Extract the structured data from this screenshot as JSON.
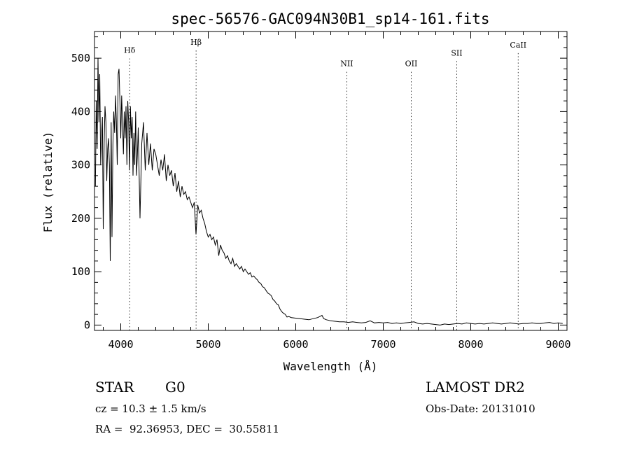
{
  "chart_data": {
    "type": "line",
    "title": "spec-56576-GAC094N30B1_sp14-161.fits",
    "xlabel": "Wavelength (Å)",
    "ylabel": "Flux (relative)",
    "xlim": [
      3700,
      9100
    ],
    "ylim": [
      -10,
      550
    ],
    "x_ticks": [
      4000,
      5000,
      6000,
      7000,
      8000,
      9000
    ],
    "y_ticks": [
      0,
      100,
      200,
      300,
      400,
      500
    ],
    "grid": false,
    "line_color": "#000000",
    "lines": [
      {
        "label": "Hδ",
        "x": 4102,
        "label_y": 510
      },
      {
        "label": "Hβ",
        "x": 4861,
        "label_y": 525
      },
      {
        "label": "NII",
        "x": 6583,
        "label_y": 485
      },
      {
        "label": "OII",
        "x": 7320,
        "label_y": 485
      },
      {
        "label": "SII",
        "x": 7840,
        "label_y": 505
      },
      {
        "label": "CaII",
        "x": 8542,
        "label_y": 520
      }
    ],
    "series": [
      {
        "x": [
          3710,
          3720,
          3730,
          3740,
          3750,
          3760,
          3770,
          3780,
          3790,
          3800,
          3810,
          3820,
          3830,
          3840,
          3850,
          3860,
          3870,
          3880,
          3890,
          3900,
          3910,
          3920,
          3930,
          3940,
          3950,
          3960,
          3970,
          3980,
          3990,
          4000,
          4010,
          4020,
          4030,
          4040,
          4050,
          4060,
          4070,
          4080,
          4090,
          4100,
          4110,
          4120,
          4130,
          4140,
          4150,
          4160,
          4170,
          4180,
          4190,
          4200,
          4220,
          4240,
          4260,
          4280,
          4300,
          4320,
          4340,
          4360,
          4380,
          4400,
          4420,
          4440,
          4460,
          4480,
          4500,
          4520,
          4540,
          4560,
          4580,
          4600,
          4620,
          4640,
          4660,
          4680,
          4700,
          4720,
          4740,
          4760,
          4780,
          4800,
          4820,
          4840,
          4860,
          4880,
          4900,
          4920,
          4940,
          4960,
          4980,
          5000,
          5020,
          5040,
          5060,
          5080,
          5100,
          5120,
          5140,
          5160,
          5180,
          5200,
          5220,
          5240,
          5260,
          5280,
          5300,
          5320,
          5340,
          5360,
          5380,
          5400,
          5420,
          5440,
          5460,
          5480,
          5500,
          5520,
          5540,
          5560,
          5580,
          5600,
          5620,
          5640,
          5660,
          5680,
          5700,
          5720,
          5740,
          5760,
          5780,
          5800,
          5820,
          5840,
          5860,
          5880,
          5900,
          5920,
          5950,
          6000,
          6050,
          6100,
          6150,
          6200,
          6250,
          6300,
          6320,
          6350,
          6400,
          6450,
          6500,
          6550,
          6600,
          6650,
          6700,
          6750,
          6800,
          6850,
          6900,
          6950,
          7000,
          7050,
          7100,
          7150,
          7200,
          7250,
          7300,
          7350,
          7400,
          7450,
          7500,
          7550,
          7600,
          7650,
          7700,
          7750,
          7800,
          7850,
          7900,
          7950,
          8000,
          8050,
          8100,
          8150,
          8200,
          8250,
          8300,
          8350,
          8400,
          8450,
          8500,
          8550,
          8600,
          8650,
          8700,
          8750,
          8800,
          8850,
          8900,
          8950,
          9000,
          9050
        ],
        "y": [
          260,
          420,
          330,
          500,
          380,
          470,
          300,
          350,
          390,
          180,
          340,
          410,
          380,
          270,
          330,
          350,
          300,
          120,
          380,
          165,
          340,
          400,
          360,
          430,
          380,
          300,
          470,
          480,
          420,
          350,
          430,
          380,
          320,
          400,
          350,
          410,
          300,
          420,
          380,
          290,
          410,
          350,
          390,
          280,
          360,
          300,
          400,
          280,
          320,
          370,
          200,
          340,
          380,
          290,
          360,
          300,
          340,
          290,
          330,
          320,
          300,
          280,
          310,
          290,
          320,
          270,
          300,
          280,
          290,
          260,
          285,
          250,
          270,
          240,
          260,
          245,
          250,
          235,
          240,
          230,
          220,
          230,
          170,
          225,
          210,
          215,
          200,
          190,
          175,
          165,
          170,
          160,
          165,
          150,
          160,
          130,
          150,
          140,
          135,
          125,
          130,
          120,
          115,
          125,
          110,
          115,
          110,
          105,
          110,
          100,
          105,
          100,
          95,
          98,
          90,
          92,
          88,
          85,
          80,
          78,
          72,
          70,
          65,
          60,
          58,
          55,
          48,
          45,
          40,
          38,
          30,
          25,
          22,
          20,
          15,
          16,
          14,
          13,
          12,
          11,
          10,
          12,
          14,
          18,
          12,
          10,
          8,
          7,
          6,
          6,
          5,
          6,
          5,
          4,
          5,
          8,
          4,
          5,
          4,
          5,
          3,
          4,
          3,
          4,
          5,
          6,
          3,
          2,
          3,
          2,
          1,
          0,
          2,
          1,
          2,
          3,
          2,
          4,
          3,
          2,
          3,
          2,
          3,
          4,
          3,
          2,
          3,
          4,
          3,
          2,
          3,
          3,
          4,
          3,
          3,
          4,
          5,
          3,
          4,
          3
        ]
      }
    ]
  },
  "info": {
    "object_class": "STAR",
    "subclass": "G0",
    "survey": "LAMOST DR2",
    "cz": "cz = 10.3 ± 1.5 km/s",
    "obs_date": "Obs-Date: 20131010",
    "coords": "RA =  92.36953, DEC =  30.55811"
  }
}
